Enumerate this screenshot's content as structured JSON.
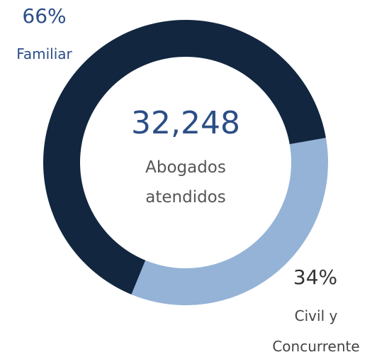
{
  "chart_data": {
    "type": "donut",
    "categories": [
      "Familiar",
      "Civil y Concurrente"
    ],
    "values": [
      66,
      34
    ],
    "value_labels": [
      "66%",
      "34%"
    ],
    "colors": [
      "#12263f",
      "#95b3d7"
    ],
    "center_value": {
      "value": 32248,
      "label": "32,248"
    },
    "center_caption": "Abogados atendidos"
  }
}
